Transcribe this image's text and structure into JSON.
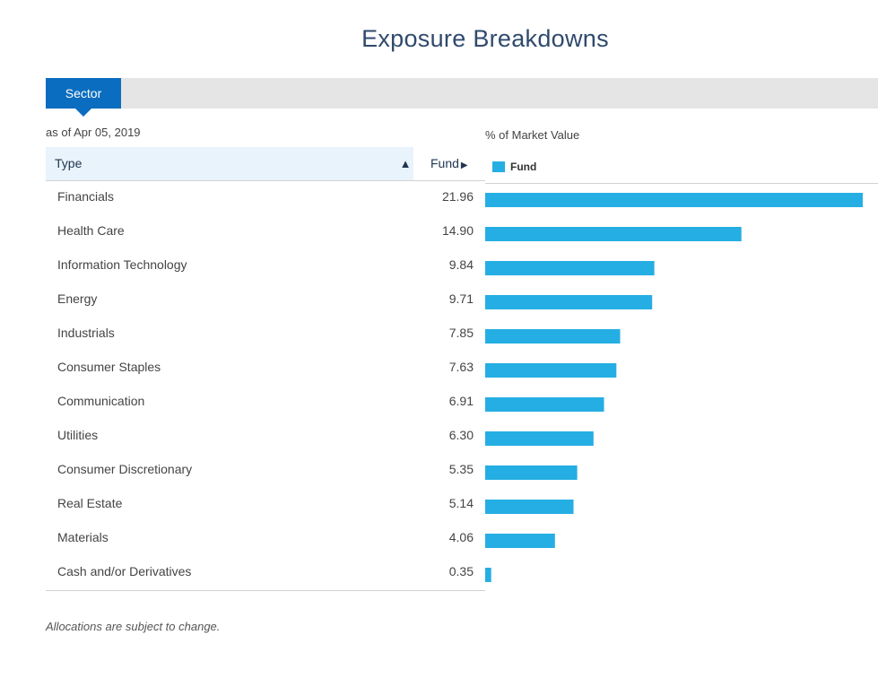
{
  "page": {
    "title": "Exposure Breakdowns",
    "tab_label": "Sector",
    "as_of": "as of Apr 05, 2019",
    "chart_heading": "% of Market Value",
    "note": "Allocations are subject to change."
  },
  "table": {
    "col_type": "Type",
    "col_fund": "Fund",
    "sort_icon": "triangle-up-icon",
    "fund_arrow_icon": "triangle-right-icon",
    "rows": [
      {
        "label": "Financials",
        "value": "21.96"
      },
      {
        "label": "Health Care",
        "value": "14.90"
      },
      {
        "label": "Information Technology",
        "value": "9.84"
      },
      {
        "label": "Energy",
        "value": "9.71"
      },
      {
        "label": "Industrials",
        "value": "7.85"
      },
      {
        "label": "Consumer Staples",
        "value": "7.63"
      },
      {
        "label": "Communication",
        "value": "6.91"
      },
      {
        "label": "Utilities",
        "value": "6.30"
      },
      {
        "label": "Consumer Discretionary",
        "value": "5.35"
      },
      {
        "label": "Real Estate",
        "value": "5.14"
      },
      {
        "label": "Materials",
        "value": "4.06"
      },
      {
        "label": "Cash and/or Derivatives",
        "value": "0.35"
      }
    ]
  },
  "colors": {
    "accent": "#0b6dbf",
    "bar": "#25aee3",
    "title": "#2f4a6d",
    "header_bg": "#e9f3fc"
  },
  "chart_data": {
    "type": "bar",
    "orientation": "horizontal",
    "title": "% of Market Value",
    "categories": [
      "Financials",
      "Health Care",
      "Information Technology",
      "Energy",
      "Industrials",
      "Consumer Staples",
      "Communication",
      "Utilities",
      "Consumer Discretionary",
      "Real Estate",
      "Materials",
      "Cash and/or Derivatives"
    ],
    "series": [
      {
        "name": "Fund",
        "values": [
          21.96,
          14.9,
          9.84,
          9.71,
          7.85,
          7.63,
          6.91,
          6.3,
          5.35,
          5.14,
          4.06,
          0.35
        ]
      }
    ],
    "xlim": [
      0,
      22
    ],
    "grid": false,
    "legend": "top-left"
  }
}
